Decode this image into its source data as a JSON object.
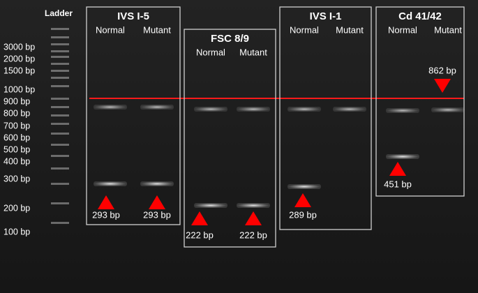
{
  "ladder": {
    "title": "Ladder",
    "marks": [
      "3000 bp",
      "2000 bp",
      "1500 bp",
      "1000 bp",
      "900 bp",
      "800 bp",
      "700 bp",
      "600 bp",
      "500 bp",
      "400 bp",
      "300 bp",
      "200 bp",
      "100 bp"
    ]
  },
  "groups": [
    {
      "title": "IVS I-5",
      "lanes": [
        "Normal",
        "Mutant"
      ],
      "labels": [
        "293 bp",
        "293 bp"
      ]
    },
    {
      "title": "FSC 8/9",
      "lanes": [
        "Normal",
        "Mutant"
      ],
      "labels": [
        "222 bp",
        "222 bp"
      ]
    },
    {
      "title": "IVS I-1",
      "lanes": [
        "Normal",
        "Mutant"
      ],
      "labels": [
        "289 bp"
      ]
    },
    {
      "title": "Cd 41/42",
      "lanes": [
        "Normal",
        "Mutant"
      ],
      "labels": [
        "451 bp",
        "862 bp"
      ]
    }
  ]
}
